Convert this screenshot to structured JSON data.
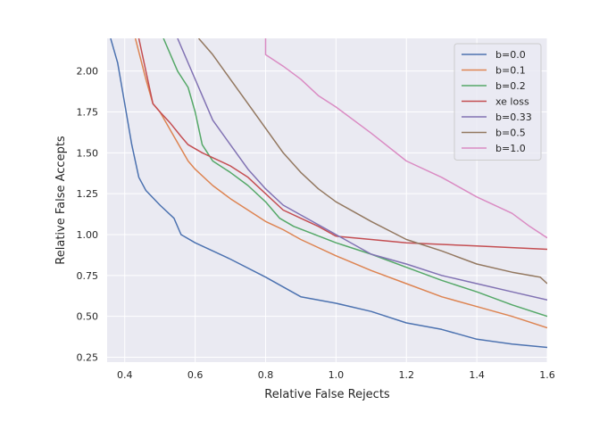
{
  "chart_data": {
    "type": "line",
    "title": "",
    "xlabel": "Relative False Rejects",
    "ylabel": "Relative False Accepts",
    "xlim": [
      0.35,
      1.6
    ],
    "ylim": [
      0.22,
      2.2
    ],
    "xticks": [
      0.4,
      0.6,
      0.8,
      1.0,
      1.2,
      1.4,
      1.6
    ],
    "xtick_labels": [
      "0.4",
      "0.6",
      "0.8",
      "1.0",
      "1.2",
      "1.4",
      "1.6"
    ],
    "yticks": [
      0.25,
      0.5,
      0.75,
      1.0,
      1.25,
      1.5,
      1.75,
      2.0
    ],
    "ytick_labels": [
      "0.25",
      "0.50",
      "0.75",
      "1.00",
      "1.25",
      "1.50",
      "1.75",
      "2.00"
    ],
    "grid": true,
    "legend": "top-right",
    "background": "#eaeaf2",
    "series": [
      {
        "name": "b=0.0",
        "color": "#4c72b0",
        "points": [
          [
            0.36,
            2.2
          ],
          [
            0.38,
            2.05
          ],
          [
            0.4,
            1.8
          ],
          [
            0.42,
            1.55
          ],
          [
            0.44,
            1.35
          ],
          [
            0.46,
            1.27
          ],
          [
            0.5,
            1.18
          ],
          [
            0.54,
            1.1
          ],
          [
            0.56,
            1.0
          ],
          [
            0.6,
            0.95
          ],
          [
            0.65,
            0.9
          ],
          [
            0.7,
            0.85
          ],
          [
            0.8,
            0.74
          ],
          [
            0.85,
            0.68
          ],
          [
            0.9,
            0.62
          ],
          [
            1.0,
            0.58
          ],
          [
            1.1,
            0.53
          ],
          [
            1.2,
            0.46
          ],
          [
            1.3,
            0.42
          ],
          [
            1.4,
            0.36
          ],
          [
            1.5,
            0.33
          ],
          [
            1.6,
            0.31
          ]
        ]
      },
      {
        "name": "b=0.1",
        "color": "#dd8452",
        "points": [
          [
            0.43,
            2.2
          ],
          [
            0.46,
            1.95
          ],
          [
            0.48,
            1.8
          ],
          [
            0.5,
            1.75
          ],
          [
            0.54,
            1.6
          ],
          [
            0.58,
            1.45
          ],
          [
            0.6,
            1.4
          ],
          [
            0.65,
            1.3
          ],
          [
            0.7,
            1.22
          ],
          [
            0.8,
            1.08
          ],
          [
            0.85,
            1.03
          ],
          [
            0.9,
            0.97
          ],
          [
            1.0,
            0.87
          ],
          [
            1.1,
            0.78
          ],
          [
            1.2,
            0.7
          ],
          [
            1.3,
            0.62
          ],
          [
            1.4,
            0.56
          ],
          [
            1.5,
            0.5
          ],
          [
            1.6,
            0.43
          ]
        ]
      },
      {
        "name": "b=0.2",
        "color": "#55a868",
        "points": [
          [
            0.51,
            2.2
          ],
          [
            0.55,
            2.0
          ],
          [
            0.58,
            1.9
          ],
          [
            0.6,
            1.75
          ],
          [
            0.62,
            1.55
          ],
          [
            0.65,
            1.45
          ],
          [
            0.7,
            1.38
          ],
          [
            0.75,
            1.3
          ],
          [
            0.8,
            1.2
          ],
          [
            0.84,
            1.1
          ],
          [
            0.88,
            1.05
          ],
          [
            1.0,
            0.95
          ],
          [
            1.1,
            0.88
          ],
          [
            1.2,
            0.8
          ],
          [
            1.3,
            0.72
          ],
          [
            1.4,
            0.65
          ],
          [
            1.5,
            0.57
          ],
          [
            1.6,
            0.5
          ]
        ]
      },
      {
        "name": "xe loss",
        "color": "#c44e52",
        "points": [
          [
            0.44,
            2.2
          ],
          [
            0.46,
            2.0
          ],
          [
            0.48,
            1.8
          ],
          [
            0.5,
            1.75
          ],
          [
            0.53,
            1.68
          ],
          [
            0.56,
            1.6
          ],
          [
            0.58,
            1.55
          ],
          [
            0.62,
            1.5
          ],
          [
            0.7,
            1.42
          ],
          [
            0.75,
            1.35
          ],
          [
            0.8,
            1.25
          ],
          [
            0.85,
            1.15
          ],
          [
            0.9,
            1.1
          ],
          [
            0.95,
            1.05
          ],
          [
            1.0,
            0.99
          ],
          [
            1.1,
            0.97
          ],
          [
            1.2,
            0.95
          ],
          [
            1.4,
            0.93
          ],
          [
            1.6,
            0.91
          ]
        ]
      },
      {
        "name": "b=0.33",
        "color": "#8172b3",
        "points": [
          [
            0.55,
            2.2
          ],
          [
            0.58,
            2.05
          ],
          [
            0.62,
            1.85
          ],
          [
            0.65,
            1.7
          ],
          [
            0.7,
            1.55
          ],
          [
            0.75,
            1.4
          ],
          [
            0.8,
            1.28
          ],
          [
            0.85,
            1.18
          ],
          [
            0.9,
            1.12
          ],
          [
            1.0,
            1.0
          ],
          [
            1.1,
            0.88
          ],
          [
            1.2,
            0.82
          ],
          [
            1.3,
            0.75
          ],
          [
            1.4,
            0.7
          ],
          [
            1.5,
            0.65
          ],
          [
            1.6,
            0.6
          ]
        ]
      },
      {
        "name": "b=0.5",
        "color": "#937860",
        "points": [
          [
            0.61,
            2.2
          ],
          [
            0.65,
            2.1
          ],
          [
            0.7,
            1.95
          ],
          [
            0.75,
            1.8
          ],
          [
            0.8,
            1.65
          ],
          [
            0.85,
            1.5
          ],
          [
            0.9,
            1.38
          ],
          [
            0.95,
            1.28
          ],
          [
            1.0,
            1.2
          ],
          [
            1.1,
            1.08
          ],
          [
            1.2,
            0.97
          ],
          [
            1.3,
            0.9
          ],
          [
            1.4,
            0.82
          ],
          [
            1.5,
            0.77
          ],
          [
            1.58,
            0.74
          ],
          [
            1.6,
            0.7
          ]
        ]
      },
      {
        "name": "b=1.0",
        "color": "#da8bc3",
        "points": [
          [
            0.8,
            2.2
          ],
          [
            0.8,
            2.1
          ],
          [
            0.85,
            2.03
          ],
          [
            0.9,
            1.95
          ],
          [
            0.95,
            1.85
          ],
          [
            1.0,
            1.78
          ],
          [
            1.1,
            1.62
          ],
          [
            1.2,
            1.45
          ],
          [
            1.3,
            1.35
          ],
          [
            1.4,
            1.23
          ],
          [
            1.5,
            1.13
          ],
          [
            1.55,
            1.05
          ],
          [
            1.6,
            0.98
          ]
        ]
      }
    ]
  }
}
